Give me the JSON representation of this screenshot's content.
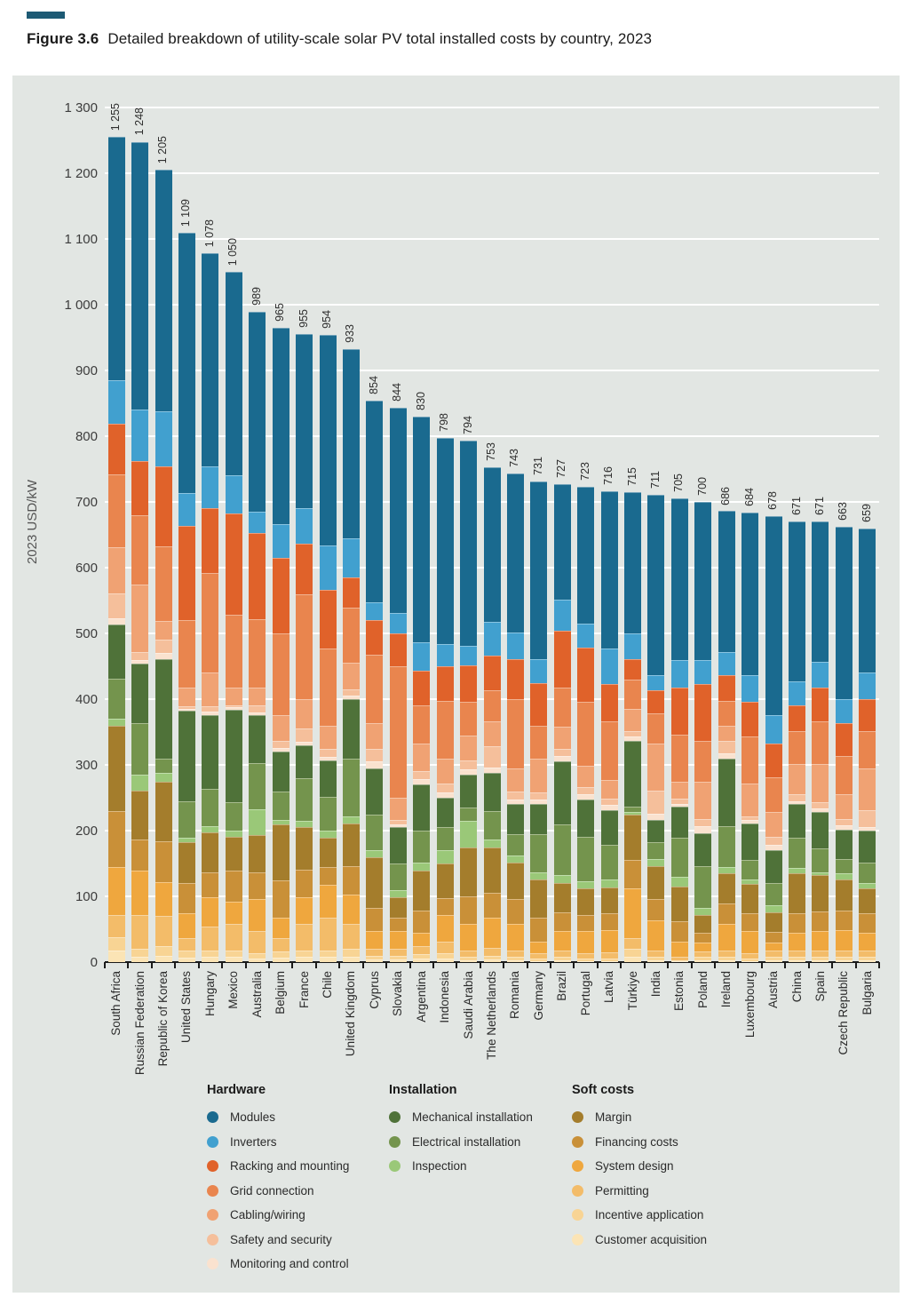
{
  "figure": {
    "label": "Figure 3.6",
    "title": "Detailed breakdown of utility-scale solar PV total installed costs by country, 2023"
  },
  "y_axis": {
    "title": "2023 USD/kW",
    "min": 0,
    "max": 1300,
    "tick_step": 100,
    "tick_labels": [
      "0",
      "100",
      "200",
      "300",
      "400",
      "500",
      "600",
      "700",
      "800",
      "900",
      "1 000",
      "1 100",
      "1 200",
      "1 300"
    ]
  },
  "chart_data": {
    "type": "bar",
    "subtype": "stacked",
    "unit": "2023 USD/kW",
    "grid": true,
    "categories": [
      "South Africa",
      "Russian Federation",
      "Republic of Korea",
      "United States",
      "Hungary",
      "Mexico",
      "Australia",
      "Belgium",
      "France",
      "Chile",
      "United Kingdom",
      "Cyprus",
      "Slovakia",
      "Argentina",
      "Indonesia",
      "Saudi Arabia",
      "The Netherlands",
      "Romania",
      "Germany",
      "Brazil",
      "Portugal",
      "Latvia",
      "Türkiye",
      "India",
      "Estonia",
      "Poland",
      "Ireland",
      "Luxembourg",
      "Austria",
      "China",
      "Spain",
      "Czech Republic",
      "Bulgaria"
    ],
    "totals": [
      1255,
      1248,
      1205,
      1109,
      1078,
      1050,
      989,
      965,
      955,
      954,
      933,
      854,
      844,
      830,
      798,
      794,
      753,
      743,
      731,
      727,
      723,
      716,
      715,
      711,
      705,
      700,
      686,
      684,
      678,
      671,
      671,
      663,
      659
    ],
    "total_labels": [
      "1 255",
      "1 248",
      "1 205",
      "1 109",
      "1 078",
      "1 050",
      "989",
      "965",
      "955",
      "954",
      "933",
      "854",
      "844",
      "830",
      "798",
      "794",
      "753",
      "743",
      "731",
      "727",
      "723",
      "716",
      "715",
      "711",
      "705",
      "700",
      "686",
      "684",
      "678",
      "671",
      "671",
      "663",
      "659"
    ],
    "stack_order_note": "series listed bottom-to-top",
    "series": [
      {
        "name": "Customer acquisition",
        "group": "Soft costs",
        "color": "#fbe4b5",
        "values": [
          18,
          8,
          10,
          7,
          8,
          8,
          5,
          7,
          8,
          8,
          8,
          4,
          4,
          5,
          5,
          3,
          4,
          3,
          2,
          3,
          2,
          2,
          8,
          3,
          1,
          3,
          3,
          2,
          3,
          3,
          3,
          3,
          3
        ]
      },
      {
        "name": "Incentive application",
        "group": "Soft costs",
        "color": "#f8d494",
        "values": [
          20,
          12,
          15,
          10,
          10,
          10,
          8,
          9,
          10,
          10,
          12,
          6,
          6,
          7,
          8,
          5,
          6,
          5,
          4,
          5,
          4,
          4,
          12,
          5,
          2,
          5,
          5,
          4,
          5,
          5,
          5,
          5,
          5
        ]
      },
      {
        "name": "Permitting",
        "group": "Soft costs",
        "color": "#f3bc69",
        "values": [
          34,
          52,
          45,
          20,
          36,
          40,
          34,
          20,
          40,
          49,
          38,
          10,
          10,
          12,
          18,
          10,
          12,
          10,
          7,
          10,
          7,
          9,
          16,
          10,
          5,
          8,
          10,
          7,
          9,
          10,
          10,
          10,
          10
        ]
      },
      {
        "name": "System design",
        "group": "Soft costs",
        "color": "#efa73e",
        "values": [
          72,
          67,
          52,
          38,
          45,
          34,
          49,
          31,
          41,
          50,
          45,
          27,
          27,
          21,
          41,
          40,
          45,
          40,
          18,
          29,
          34,
          34,
          76,
          45,
          23,
          14,
          40,
          34,
          13,
          27,
          29,
          31,
          27
        ]
      },
      {
        "name": "Financing costs",
        "group": "Soft costs",
        "color": "#c99038",
        "values": [
          86,
          47,
          62,
          46,
          38,
          47,
          41,
          57,
          42,
          28,
          43,
          36,
          20,
          34,
          26,
          42,
          38,
          38,
          37,
          29,
          25,
          25,
          43,
          33,
          31,
          15,
          31,
          28,
          16,
          30,
          30,
          30,
          30
        ]
      },
      {
        "name": "Margin",
        "group": "Soft costs",
        "color": "#a47d2c",
        "values": [
          130,
          75,
          90,
          61,
          61,
          52,
          56,
          85,
          64,
          44,
          65,
          76,
          32,
          60,
          52,
          75,
          70,
          55,
          58,
          45,
          40,
          40,
          70,
          50,
          52,
          27,
          46,
          44,
          30,
          60,
          55,
          47,
          37
        ]
      },
      {
        "name": "Inspection",
        "group": "Installation",
        "color": "#9ac878",
        "values": [
          10,
          24,
          14,
          7,
          9,
          9,
          40,
          7,
          10,
          11,
          11,
          11,
          11,
          13,
          20,
          40,
          11,
          11,
          11,
          11,
          11,
          12,
          4,
          11,
          16,
          10,
          9,
          7,
          10,
          9,
          5,
          9,
          9
        ]
      },
      {
        "name": "Electrical installation",
        "group": "Installation",
        "color": "#74944d",
        "values": [
          61,
          79,
          22,
          56,
          56,
          43,
          70,
          44,
          65,
          52,
          88,
          55,
          40,
          48,
          35,
          20,
          44,
          33,
          58,
          78,
          67,
          52,
          8,
          25,
          59,
          64,
          63,
          30,
          34,
          45,
          36,
          22,
          31
        ]
      },
      {
        "name": "Mechanical installation",
        "group": "Installation",
        "color": "#4f7239",
        "values": [
          82,
          90,
          151,
          137,
          113,
          141,
          73,
          61,
          50,
          55,
          90,
          70,
          55,
          70,
          45,
          50,
          58,
          45,
          45,
          96,
          57,
          53,
          100,
          34,
          47,
          50,
          103,
          55,
          50,
          51,
          56,
          45,
          48
        ]
      },
      {
        "name": "Monitoring and control",
        "group": "Hardware",
        "color": "#fae2cf",
        "values": [
          10,
          5,
          9,
          3,
          5,
          4,
          4,
          5,
          5,
          5,
          5,
          10,
          4,
          8,
          8,
          8,
          8,
          8,
          8,
          8,
          8,
          8,
          6,
          10,
          5,
          11,
          8,
          5,
          8,
          5,
          5,
          6,
          6
        ]
      },
      {
        "name": "Safety and security",
        "group": "Hardware",
        "color": "#f5bf9b",
        "values": [
          38,
          13,
          20,
          4,
          8,
          3,
          11,
          11,
          20,
          12,
          10,
          20,
          8,
          12,
          14,
          14,
          32,
          12,
          10,
          10,
          12,
          10,
          8,
          35,
          8,
          11,
          19,
          6,
          12,
          11,
          9,
          10,
          25
        ]
      },
      {
        "name": "Cabling/wiring",
        "group": "Hardware",
        "color": "#f0a273",
        "values": [
          70,
          102,
          29,
          29,
          52,
          27,
          27,
          39,
          45,
          36,
          40,
          39,
          33,
          43,
          38,
          38,
          38,
          35,
          52,
          34,
          32,
          28,
          34,
          72,
          25,
          56,
          23,
          50,
          39,
          45,
          58,
          38,
          64
        ]
      },
      {
        "name": "Grid connection",
        "group": "Hardware",
        "color": "#e9854e",
        "values": [
          111,
          106,
          113,
          102,
          151,
          111,
          104,
          124,
          160,
          117,
          85,
          104,
          200,
          58,
          88,
          51,
          48,
          105,
          50,
          60,
          97,
          90,
          45,
          45,
          72,
          63,
          38,
          72,
          52,
          50,
          66,
          57,
          56
        ]
      },
      {
        "name": "Racking and mounting",
        "group": "Hardware",
        "color": "#e0622a",
        "values": [
          77,
          83,
          122,
          144,
          99,
          154,
          131,
          115,
          77,
          90,
          45,
          52,
          50,
          52,
          52,
          56,
          52,
          61,
          65,
          86,
          83,
          56,
          31,
          36,
          72,
          86,
          38,
          52,
          52,
          40,
          51,
          51,
          49
        ]
      },
      {
        "name": "Inverters",
        "group": "Hardware",
        "color": "#41a0cf",
        "values": [
          67,
          78,
          84,
          50,
          63,
          58,
          32,
          51,
          54,
          67,
          60,
          27,
          31,
          43,
          34,
          29,
          52,
          41,
          36,
          47,
          36,
          54,
          39,
          22,
          41,
          36,
          36,
          40,
          43,
          36,
          39,
          36,
          41
        ]
      },
      {
        "name": "Modules",
        "group": "Hardware",
        "color": "#1a6a8f",
        "values": [
          369,
          407,
          367,
          395,
          324,
          309,
          304,
          299,
          264,
          320,
          288,
          307,
          313,
          344,
          314,
          313,
          235,
          241,
          270,
          176,
          208,
          239,
          215,
          275,
          246,
          241,
          214,
          248,
          302,
          244,
          214,
          263,
          218
        ]
      }
    ]
  },
  "legend": {
    "groups": [
      {
        "header": "Hardware",
        "items": [
          "Modules",
          "Inverters",
          "Racking and mounting",
          "Grid connection",
          "Cabling/wiring",
          "Safety and security",
          "Monitoring and control"
        ]
      },
      {
        "header": "Installation",
        "items": [
          "Mechanical installation",
          "Electrical installation",
          "Inspection"
        ]
      },
      {
        "header": "Soft costs",
        "items": [
          "Margin",
          "Financing costs",
          "System design",
          "Permitting",
          "Incentive application",
          "Customer acquisition"
        ]
      }
    ]
  }
}
